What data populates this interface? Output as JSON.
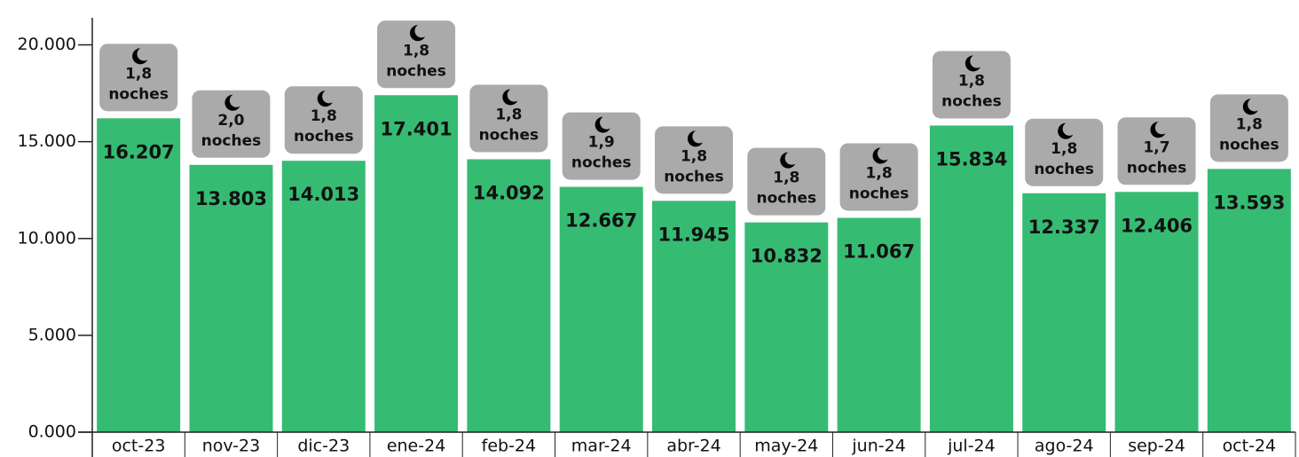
{
  "chart_data": {
    "type": "bar",
    "categories": [
      "oct-23",
      "nov-23",
      "dic-23",
      "ene-24",
      "feb-24",
      "mar-24",
      "abr-24",
      "may-24",
      "jun-24",
      "jul-24",
      "ago-24",
      "sep-24",
      "oct-24"
    ],
    "values": [
      16207,
      13803,
      14013,
      17401,
      14092,
      12667,
      11945,
      10832,
      11067,
      15834,
      12337,
      12406,
      13593
    ],
    "value_labels": [
      "16.207",
      "13.803",
      "14.013",
      "17.401",
      "14.092",
      "12.667",
      "11.945",
      "10.832",
      "11.067",
      "15.834",
      "12.337",
      "12.406",
      "13.593"
    ],
    "color": "#36bb73",
    "night_labels": [
      "1,8",
      "2,0",
      "1,8",
      "1,8",
      "1,8",
      "1,9",
      "1,8",
      "1,8",
      "1,8",
      "1,8",
      "1,8",
      "1,7",
      "1,8"
    ],
    "night_unit": "noches",
    "badge_color": "#aaaaaa",
    "ylim": [
      0,
      21400
    ],
    "yticks": [
      {
        "value": 0,
        "label": "0.000"
      },
      {
        "value": 5000,
        "label": "5.000"
      },
      {
        "value": 10000,
        "label": "10.000"
      },
      {
        "value": 15000,
        "label": "15.000"
      },
      {
        "value": 20000,
        "label": "20.000"
      }
    ],
    "grid": false
  }
}
